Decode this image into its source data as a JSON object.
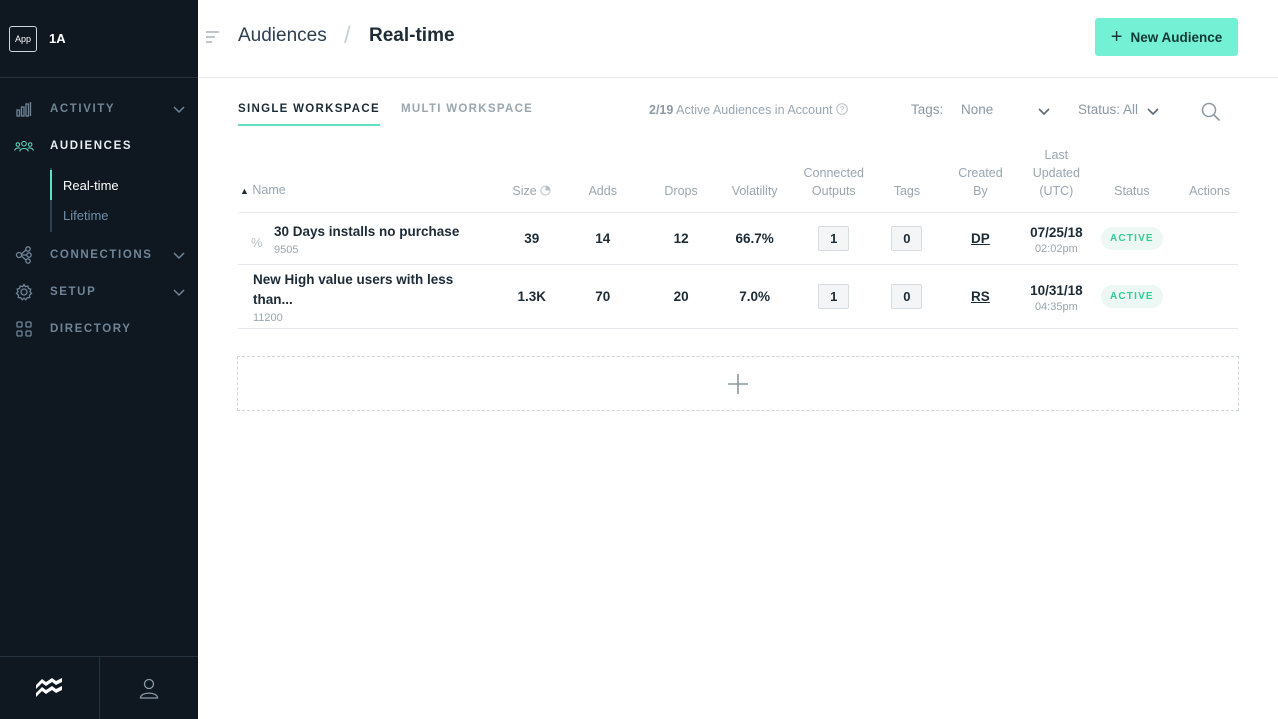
{
  "sidebar": {
    "app_badge": "App",
    "workspace": "1A",
    "nav": [
      {
        "label": "ACTIVITY",
        "icon": "bar-chart-icon"
      },
      {
        "label": "AUDIENCES",
        "icon": "users-icon"
      },
      {
        "label": "CONNECTIONS",
        "icon": "network-icon"
      },
      {
        "label": "SETUP",
        "icon": "gear-icon"
      },
      {
        "label": "DIRECTORY",
        "icon": "grid-icon"
      }
    ],
    "subnav": [
      {
        "label": "Real-time"
      },
      {
        "label": "Lifetime"
      }
    ]
  },
  "header": {
    "crumb_parent": "Audiences",
    "crumb_current": "Real-time",
    "new_button": "New Audience"
  },
  "toolbar": {
    "tab_single": "SINGLE WORKSPACE",
    "tab_multi": "MULTI WORKSPACE",
    "count_num": "2/19",
    "count_text": "Active Audiences in Account",
    "tags_label": "Tags:",
    "tags_value": "None",
    "status_filter": "Status: All"
  },
  "table": {
    "columns": {
      "name": "Name",
      "size": "Size",
      "adds": "Adds",
      "drops": "Drops",
      "volatility": "Volatility",
      "outputs_1": "Connected",
      "outputs_2": "Outputs",
      "tags": "Tags",
      "created_1": "Created",
      "created_2": "By",
      "updated_1": "Last",
      "updated_2": "Updated",
      "updated_3": "(UTC)",
      "status": "Status",
      "actions": "Actions"
    },
    "rows": [
      {
        "name": "30 Days installs no purchase",
        "id": "9505",
        "size": "39",
        "adds": "14",
        "drops": "12",
        "volatility": "66.7%",
        "outputs": "1",
        "tags": "0",
        "created_by": "DP",
        "date": "07/25/18",
        "time": "02:02pm",
        "status": "ACTIVE"
      },
      {
        "name": "New High value users with less than...",
        "id": "11200",
        "size": "1.3K",
        "adds": "70",
        "drops": "20",
        "volatility": "7.0%",
        "outputs": "1",
        "tags": "0",
        "created_by": "RS",
        "date": "10/31/18",
        "time": "04:35pm",
        "status": "ACTIVE"
      }
    ]
  },
  "colors": {
    "accent": "#74f0d4",
    "sidebar_bg": "#0f1720",
    "active_badge": "#2fcf95"
  }
}
